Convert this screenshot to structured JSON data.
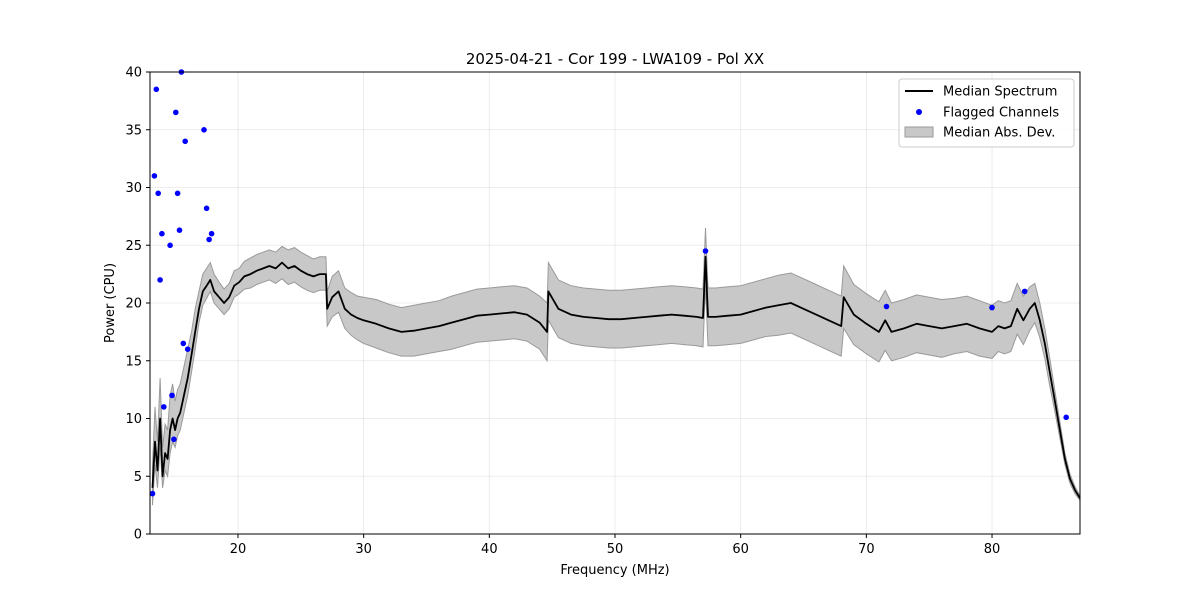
{
  "chart_data": {
    "type": "line",
    "title": "2025-04-21 - Cor 199 - LWA109 - Pol XX",
    "xlabel": "Frequency (MHz)",
    "ylabel": "Power (CPU)",
    "xlim": [
      13.0,
      87.0
    ],
    "ylim": [
      0,
      40
    ],
    "xticks": [
      20,
      30,
      40,
      50,
      60,
      70,
      80
    ],
    "yticks": [
      0,
      5,
      10,
      15,
      20,
      25,
      30,
      35,
      40
    ],
    "grid": true,
    "legend_position": "top-right",
    "colors": {
      "median": "#000000",
      "flagged": "#0000ff",
      "mad_fill": "#c8c8c8",
      "mad_edge": "#9a9a9a"
    },
    "series": [
      {
        "name": "Median Spectrum",
        "kind": "line",
        "x": [
          13.2,
          13.4,
          13.6,
          13.8,
          14.0,
          14.2,
          14.4,
          14.6,
          14.8,
          15.0,
          15.2,
          15.4,
          15.6,
          15.8,
          16.0,
          16.3,
          16.6,
          16.9,
          17.2,
          17.5,
          17.8,
          18.1,
          18.5,
          18.9,
          19.3,
          19.7,
          20.1,
          20.5,
          21.0,
          21.5,
          22.0,
          22.5,
          23.0,
          23.5,
          24.0,
          24.5,
          25.0,
          25.5,
          26.0,
          26.5,
          27.0,
          27.1,
          27.5,
          28.0,
          28.5,
          29.0,
          29.5,
          30.0,
          31.0,
          32.0,
          33.0,
          34.0,
          35.0,
          36.0,
          37.0,
          38.0,
          39.0,
          40.0,
          41.0,
          42.0,
          43.0,
          44.0,
          44.6,
          44.7,
          45.5,
          46.5,
          47.5,
          48.5,
          49.5,
          50.5,
          51.5,
          52.5,
          53.5,
          54.5,
          55.5,
          56.5,
          57.0,
          57.2,
          57.4,
          58.0,
          59.0,
          60.0,
          61.0,
          62.0,
          63.0,
          64.0,
          65.0,
          66.0,
          67.0,
          68.0,
          68.2,
          69.0,
          70.0,
          71.0,
          71.5,
          72.0,
          73.0,
          74.0,
          75.0,
          76.0,
          77.0,
          78.0,
          79.0,
          80.0,
          80.5,
          81.0,
          81.5,
          82.0,
          82.5,
          83.0,
          83.4,
          83.8,
          84.2,
          84.6,
          85.0,
          85.4,
          85.8,
          86.2,
          86.6,
          87.0
        ],
        "y": [
          4.0,
          8.0,
          5.5,
          10.0,
          5.0,
          7.0,
          6.5,
          9.0,
          10.0,
          9.0,
          10.0,
          10.5,
          11.5,
          12.5,
          13.5,
          15.5,
          17.5,
          19.5,
          21.0,
          21.5,
          22.0,
          21.0,
          20.5,
          20.0,
          20.5,
          21.5,
          21.8,
          22.3,
          22.5,
          22.8,
          23.0,
          23.2,
          23.0,
          23.5,
          23.0,
          23.2,
          22.8,
          22.5,
          22.3,
          22.5,
          22.5,
          19.5,
          20.5,
          21.0,
          19.5,
          19.0,
          18.7,
          18.5,
          18.2,
          17.8,
          17.5,
          17.6,
          17.8,
          18.0,
          18.3,
          18.6,
          18.9,
          19.0,
          19.1,
          19.2,
          19.0,
          18.3,
          17.5,
          21.0,
          19.5,
          19.0,
          18.8,
          18.7,
          18.6,
          18.6,
          18.7,
          18.8,
          18.9,
          19.0,
          18.9,
          18.8,
          18.7,
          24.0,
          18.8,
          18.8,
          18.9,
          19.0,
          19.3,
          19.6,
          19.8,
          20.0,
          19.5,
          19.0,
          18.5,
          18.0,
          20.5,
          19.0,
          18.2,
          17.5,
          18.5,
          17.5,
          17.8,
          18.2,
          18.0,
          17.8,
          18.0,
          18.2,
          17.8,
          17.5,
          18.0,
          17.8,
          18.0,
          19.5,
          18.5,
          19.5,
          20.0,
          18.5,
          16.5,
          14.0,
          11.5,
          9.0,
          6.5,
          4.8,
          3.8,
          3.1
        ]
      },
      {
        "name": "Flagged Channels",
        "kind": "scatter",
        "x": [
          13.2,
          13.35,
          13.5,
          13.65,
          13.8,
          13.95,
          14.1,
          14.6,
          14.75,
          14.9,
          15.05,
          15.2,
          15.35,
          15.5,
          15.65,
          15.8,
          16.0,
          17.3,
          17.5,
          17.7,
          17.9,
          57.2,
          71.6,
          80.0,
          82.6,
          85.9
        ],
        "y": [
          3.5,
          31.0,
          38.5,
          29.5,
          22.0,
          26.0,
          11.0,
          25.0,
          12.0,
          8.2,
          36.5,
          29.5,
          26.3,
          40.0,
          16.5,
          34.0,
          16.0,
          35.0,
          28.2,
          25.5,
          26.0,
          24.5,
          19.7,
          19.6,
          21.0,
          10.1
        ]
      },
      {
        "name": "Median Abs. Dev.",
        "kind": "band",
        "x": [
          13.2,
          13.4,
          13.6,
          13.8,
          14.0,
          14.2,
          14.4,
          14.6,
          14.8,
          15.0,
          15.2,
          15.4,
          15.6,
          15.8,
          16.0,
          16.3,
          16.6,
          16.9,
          17.2,
          17.5,
          17.8,
          18.1,
          18.5,
          18.9,
          19.3,
          19.7,
          20.1,
          20.5,
          21.0,
          21.5,
          22.0,
          22.5,
          23.0,
          23.5,
          24.0,
          24.5,
          25.0,
          25.5,
          26.0,
          26.5,
          27.0,
          27.1,
          27.5,
          28.0,
          28.5,
          29.0,
          29.5,
          30.0,
          31.0,
          32.0,
          33.0,
          34.0,
          35.0,
          36.0,
          37.0,
          38.0,
          39.0,
          40.0,
          41.0,
          42.0,
          43.0,
          44.0,
          44.6,
          44.7,
          45.5,
          46.5,
          47.5,
          48.5,
          49.5,
          50.5,
          51.5,
          52.5,
          53.5,
          54.5,
          55.5,
          56.5,
          57.0,
          57.2,
          57.4,
          58.0,
          59.0,
          60.0,
          61.0,
          62.0,
          63.0,
          64.0,
          65.0,
          66.0,
          67.0,
          68.0,
          68.2,
          69.0,
          70.0,
          71.0,
          71.5,
          72.0,
          73.0,
          74.0,
          75.0,
          76.0,
          77.0,
          78.0,
          79.0,
          80.0,
          80.5,
          81.0,
          81.5,
          82.0,
          82.5,
          83.0,
          83.4,
          83.8,
          84.2,
          84.6,
          85.0,
          85.4,
          85.8,
          86.2,
          86.6,
          87.0
        ],
        "lower": [
          2.5,
          6.0,
          4.0,
          7.5,
          4.0,
          5.5,
          5.0,
          7.0,
          8.0,
          7.5,
          8.5,
          9.0,
          10.0,
          11.0,
          12.0,
          14.0,
          16.0,
          18.3,
          19.8,
          20.4,
          21.0,
          20.0,
          19.5,
          19.0,
          19.5,
          20.5,
          20.8,
          21.2,
          21.3,
          21.6,
          21.8,
          22.0,
          21.7,
          22.1,
          21.6,
          21.8,
          21.4,
          21.1,
          20.9,
          21.1,
          21.1,
          18.0,
          18.8,
          19.2,
          17.8,
          17.2,
          16.8,
          16.5,
          16.1,
          15.7,
          15.4,
          15.4,
          15.6,
          15.8,
          16.0,
          16.3,
          16.6,
          16.7,
          16.8,
          16.9,
          16.7,
          16.0,
          15.0,
          18.5,
          17.0,
          16.5,
          16.3,
          16.2,
          16.1,
          16.1,
          16.2,
          16.3,
          16.4,
          16.5,
          16.4,
          16.3,
          16.2,
          21.5,
          16.3,
          16.3,
          16.4,
          16.5,
          16.8,
          17.1,
          17.2,
          17.4,
          16.9,
          16.4,
          15.9,
          15.4,
          17.8,
          16.4,
          15.6,
          14.9,
          15.9,
          15.0,
          15.3,
          15.7,
          15.5,
          15.3,
          15.6,
          15.8,
          15.4,
          15.2,
          15.8,
          15.6,
          15.8,
          17.3,
          16.4,
          17.6,
          18.3,
          17.0,
          15.2,
          12.8,
          10.6,
          8.3,
          6.0,
          4.4,
          3.5,
          2.9
        ],
        "upper": [
          6.0,
          11.0,
          8.0,
          13.5,
          7.5,
          9.5,
          9.0,
          12.0,
          13.0,
          11.5,
          12.5,
          13.0,
          14.0,
          15.0,
          16.0,
          17.5,
          19.5,
          21.0,
          22.5,
          23.0,
          23.5,
          22.5,
          21.8,
          21.2,
          21.7,
          22.8,
          23.0,
          23.6,
          23.9,
          24.2,
          24.4,
          24.6,
          24.4,
          24.9,
          24.6,
          24.8,
          24.4,
          24.1,
          23.8,
          24.0,
          24.0,
          21.0,
          22.3,
          22.8,
          21.3,
          20.9,
          20.6,
          20.5,
          20.3,
          19.9,
          19.6,
          19.8,
          20.0,
          20.2,
          20.6,
          20.9,
          21.2,
          21.3,
          21.4,
          21.5,
          21.3,
          20.6,
          20.0,
          23.5,
          22.0,
          21.5,
          21.3,
          21.2,
          21.1,
          21.1,
          21.2,
          21.3,
          21.4,
          21.5,
          21.4,
          21.3,
          21.2,
          26.5,
          21.3,
          21.3,
          21.4,
          21.5,
          21.8,
          22.1,
          22.4,
          22.6,
          22.1,
          21.6,
          21.1,
          20.6,
          23.2,
          21.6,
          20.8,
          20.1,
          21.1,
          20.0,
          20.3,
          20.7,
          20.5,
          20.3,
          20.4,
          20.6,
          20.2,
          19.8,
          20.2,
          20.0,
          20.2,
          21.7,
          20.6,
          21.4,
          21.7,
          20.0,
          17.8,
          15.2,
          12.4,
          9.7,
          7.0,
          5.2,
          4.1,
          3.3
        ]
      }
    ]
  }
}
